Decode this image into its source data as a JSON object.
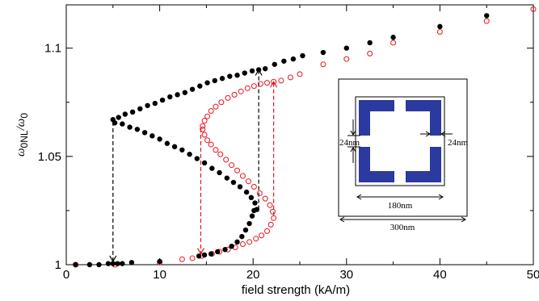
{
  "chart_data": {
    "type": "scatter",
    "xlabel": "field strength (kA/m)",
    "ylabel_main": "ω",
    "ylabel_sub": "0NL",
    "ylabel_sep": "/ω",
    "ylabel_sub2": "0",
    "xlim": [
      0,
      50
    ],
    "ylim": [
      1.0,
      1.12
    ],
    "x_ticks": [
      0,
      10,
      20,
      30,
      40,
      50
    ],
    "x_tick_labels": [
      "0",
      "10",
      "20",
      "30",
      "40",
      "50"
    ],
    "y_ticks": [
      1.0,
      1.05,
      1.1
    ],
    "y_tick_labels": [
      "1",
      "1.05",
      "1.1"
    ],
    "grid": false,
    "colors": {
      "black_series": "#000000",
      "red_series": "#e8141c",
      "inset": "#2b3a9e"
    },
    "series": [
      {
        "style": "filled",
        "points": [
          [
            1,
            1.0
          ],
          [
            2.5,
            1.0
          ],
          [
            3.5,
            1.0
          ],
          [
            4.5,
            1.0005
          ],
          [
            5,
            1.0005
          ],
          [
            5.5,
            1.0005
          ],
          [
            6,
            1.0005
          ],
          [
            7,
            1.001
          ],
          [
            10,
            1.0015
          ],
          [
            14.2,
            1.004
          ],
          [
            14.8,
            1.0045
          ],
          [
            15.5,
            1.005
          ],
          [
            16.2,
            1.006
          ],
          [
            17,
            1.007
          ],
          [
            17.7,
            1.0085
          ],
          [
            18.3,
            1.0105
          ],
          [
            18.8,
            1.013
          ],
          [
            19.2,
            1.016
          ],
          [
            19.6,
            1.019
          ],
          [
            19.9,
            1.0225
          ],
          [
            20.1,
            1.025
          ],
          [
            20.4,
            1.0255
          ],
          [
            20.2,
            1.0285
          ],
          [
            19.8,
            1.031
          ],
          [
            19.3,
            1.0335
          ],
          [
            18.6,
            1.036
          ],
          [
            17.9,
            1.038
          ],
          [
            17.2,
            1.04
          ],
          [
            16.4,
            1.0425
          ],
          [
            15.6,
            1.0445
          ],
          [
            14.8,
            1.047
          ],
          [
            14.0,
            1.049
          ],
          [
            13.2,
            1.051
          ],
          [
            12.4,
            1.053
          ],
          [
            11.6,
            1.0545
          ],
          [
            10.8,
            1.056
          ],
          [
            10.0,
            1.058
          ],
          [
            9.2,
            1.0595
          ],
          [
            8.4,
            1.061
          ],
          [
            7.6,
            1.0625
          ],
          [
            6.8,
            1.0635
          ],
          [
            6.0,
            1.065
          ],
          [
            5.2,
            1.0655
          ],
          [
            5.0,
            1.067
          ],
          [
            5.6,
            1.068
          ],
          [
            6.3,
            1.0695
          ],
          [
            7.1,
            1.0705
          ],
          [
            7.9,
            1.072
          ],
          [
            8.7,
            1.0735
          ],
          [
            9.5,
            1.0745
          ],
          [
            10.3,
            1.076
          ],
          [
            11.1,
            1.0775
          ],
          [
            11.9,
            1.0785
          ],
          [
            12.7,
            1.0795
          ],
          [
            13.5,
            1.081
          ],
          [
            14.3,
            1.0825
          ],
          [
            15.1,
            1.084
          ],
          [
            15.9,
            1.085
          ],
          [
            16.7,
            1.086
          ],
          [
            17.5,
            1.087
          ],
          [
            18.3,
            1.0875
          ],
          [
            19.1,
            1.0885
          ],
          [
            19.9,
            1.0895
          ],
          [
            20.6,
            1.09
          ],
          [
            21.3,
            1.0905
          ],
          [
            22.3,
            1.0925
          ],
          [
            23.3,
            1.094
          ],
          [
            24.3,
            1.095
          ],
          [
            25.3,
            1.0965
          ],
          [
            27.5,
            1.098
          ],
          [
            30,
            1.1
          ],
          [
            32.5,
            1.1025
          ],
          [
            35,
            1.105
          ],
          [
            40,
            1.11
          ],
          [
            45,
            1.115
          ]
        ]
      },
      {
        "style": "open",
        "points": [
          [
            1,
            1.0
          ],
          [
            5.2,
            1.0
          ],
          [
            10,
            1.001
          ],
          [
            12.4,
            1.0025
          ],
          [
            13.5,
            1.003
          ],
          [
            14.5,
            1.004
          ],
          [
            15.6,
            1.005
          ],
          [
            16.4,
            1.006
          ],
          [
            17.3,
            1.007
          ],
          [
            18.1,
            1.008
          ],
          [
            18.9,
            1.0095
          ],
          [
            19.6,
            1.0105
          ],
          [
            20.3,
            1.012
          ],
          [
            20.9,
            1.0135
          ],
          [
            21.5,
            1.0155
          ],
          [
            21.9,
            1.0185
          ],
          [
            22.2,
            1.0215
          ],
          [
            22.1,
            1.0245
          ],
          [
            21.8,
            1.0275
          ],
          [
            21.3,
            1.0305
          ],
          [
            20.7,
            1.033
          ],
          [
            20.1,
            1.036
          ],
          [
            19.5,
            1.0385
          ],
          [
            18.9,
            1.041
          ],
          [
            18.3,
            1.0435
          ],
          [
            17.7,
            1.046
          ],
          [
            17.1,
            1.0485
          ],
          [
            16.5,
            1.051
          ],
          [
            16.0,
            1.053
          ],
          [
            15.5,
            1.0555
          ],
          [
            15.1,
            1.0575
          ],
          [
            14.8,
            1.06
          ],
          [
            14.6,
            1.0625
          ],
          [
            14.6,
            1.064
          ],
          [
            14.8,
            1.0665
          ],
          [
            15.1,
            1.0685
          ],
          [
            15.5,
            1.071
          ],
          [
            16.0,
            1.073
          ],
          [
            16.6,
            1.075
          ],
          [
            17.3,
            1.077
          ],
          [
            18.0,
            1.0785
          ],
          [
            18.7,
            1.08
          ],
          [
            19.4,
            1.0815
          ],
          [
            20.1,
            1.0825
          ],
          [
            20.8,
            1.0835
          ],
          [
            21.5,
            1.084
          ],
          [
            22.2,
            1.0845
          ],
          [
            23,
            1.085
          ],
          [
            24,
            1.0865
          ],
          [
            25,
            1.088
          ],
          [
            27.5,
            1.0925
          ],
          [
            30,
            1.095
          ],
          [
            32.5,
            1.0975
          ],
          [
            35,
            1.1025
          ],
          [
            40,
            1.1075
          ],
          [
            45,
            1.1125
          ],
          [
            50,
            1.118
          ]
        ]
      }
    ],
    "arrows": [
      {
        "color": "#000000",
        "from": [
          5.0,
          1.066
        ],
        "to": [
          5.0,
          1.0015
        ]
      },
      {
        "color": "#000000",
        "from": [
          20.6,
          1.0255
        ],
        "to": [
          20.6,
          1.09
        ]
      },
      {
        "color": "#e8141c",
        "from": [
          14.4,
          1.063
        ],
        "to": [
          14.4,
          1.005
        ]
      },
      {
        "color": "#e8141c",
        "from": [
          22.2,
          1.0225
        ],
        "to": [
          22.2,
          1.0845
        ]
      }
    ],
    "inset": {
      "labels": {
        "outer": "300nm",
        "inner": "180nm",
        "gap": "24nm",
        "width": "24nm"
      }
    }
  }
}
